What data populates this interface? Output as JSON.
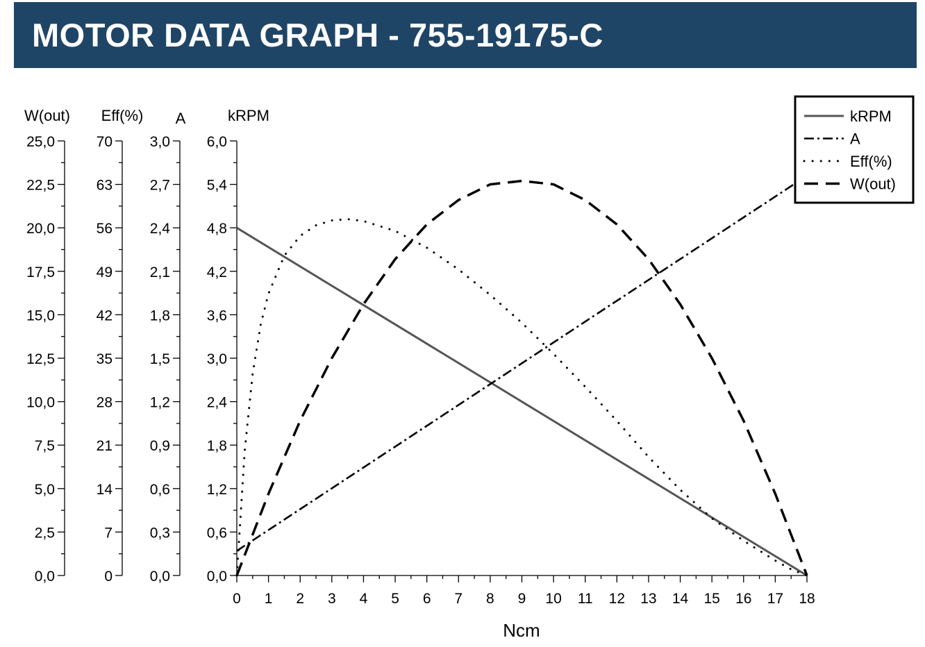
{
  "header": {
    "title": "MOTOR DATA GRAPH - 755-19175-C"
  },
  "colors": {
    "banner": "#1f4566",
    "banner_text": "#ffffff",
    "krpm_line": "#555555",
    "ink": "#000000"
  },
  "chart_data": {
    "type": "line",
    "title": "MOTOR DATA GRAPH - 755-19175-C",
    "xlabel": "Ncm",
    "x_ticks": [
      "0",
      "1",
      "2",
      "3",
      "4",
      "5",
      "6",
      "7",
      "8",
      "9",
      "10",
      "11",
      "12",
      "13",
      "14",
      "15",
      "16",
      "17",
      "18"
    ],
    "xlim": [
      0,
      18
    ],
    "grid": false,
    "legend_position": "top-right",
    "axes": [
      {
        "key": "w",
        "label": "W(out)",
        "ylim": [
          0,
          25
        ],
        "ticks": [
          "0,0",
          "2,5",
          "5,0",
          "7,5",
          "10,0",
          "12,5",
          "15,0",
          "17,5",
          "20,0",
          "22,5",
          "25,0"
        ]
      },
      {
        "key": "eff",
        "label": "Eff(%)",
        "ylim": [
          0,
          70
        ],
        "ticks": [
          "0",
          "7",
          "14",
          "21",
          "28",
          "35",
          "42",
          "49",
          "56",
          "63",
          "70"
        ]
      },
      {
        "key": "a",
        "label": "A",
        "ylim": [
          0,
          3
        ],
        "ticks": [
          "0,0",
          "0,3",
          "0,6",
          "0,9",
          "1,2",
          "1,5",
          "1,8",
          "2,1",
          "2,4",
          "2,7",
          "3,0"
        ]
      },
      {
        "key": "krpm",
        "label": "kRPM",
        "ylim": [
          0,
          6
        ],
        "ticks": [
          "0,0",
          "0,6",
          "1,2",
          "1,8",
          "2,4",
          "3,0",
          "3,6",
          "4,2",
          "4,8",
          "5,4",
          "6,0"
        ]
      }
    ],
    "series": [
      {
        "name": "kRPM",
        "axis": "krpm",
        "style": "solid",
        "x": [
          0,
          18
        ],
        "y": [
          4.8,
          0
        ]
      },
      {
        "name": "A",
        "axis": "a",
        "style": "dashdot",
        "x": [
          0,
          18
        ],
        "y": [
          0.17,
          2.76
        ]
      },
      {
        "name": "Eff(%)",
        "axis": "eff",
        "style": "dotted",
        "x": [
          0,
          0.25,
          0.5,
          0.75,
          1,
          1.5,
          2,
          2.5,
          3,
          3.5,
          4,
          5,
          6,
          7,
          8,
          9,
          10,
          11,
          12,
          13,
          14,
          15,
          16,
          17,
          17.5,
          18
        ],
        "y": [
          0,
          20.1,
          32.5,
          40.3,
          45.4,
          51.5,
          54.7,
          56.4,
          57.2,
          57.4,
          57.1,
          55.5,
          52.8,
          49.3,
          45.2,
          40.7,
          35.7,
          30.4,
          24.9,
          19.1,
          13.8,
          9.2,
          5.6,
          2.4,
          1.0,
          0
        ]
      },
      {
        "name": "W(out)",
        "axis": "w",
        "style": "dashed",
        "x": [
          0,
          1,
          2,
          3,
          4,
          5,
          6,
          7,
          8,
          9,
          10,
          11,
          12,
          13,
          14,
          15,
          16,
          17,
          18
        ],
        "y": [
          0,
          4.7,
          8.9,
          12.5,
          15.6,
          18.2,
          20.2,
          21.6,
          22.5,
          22.7,
          22.5,
          21.6,
          20.2,
          18.2,
          15.6,
          12.5,
          8.9,
          4.7,
          0
        ]
      }
    ]
  }
}
